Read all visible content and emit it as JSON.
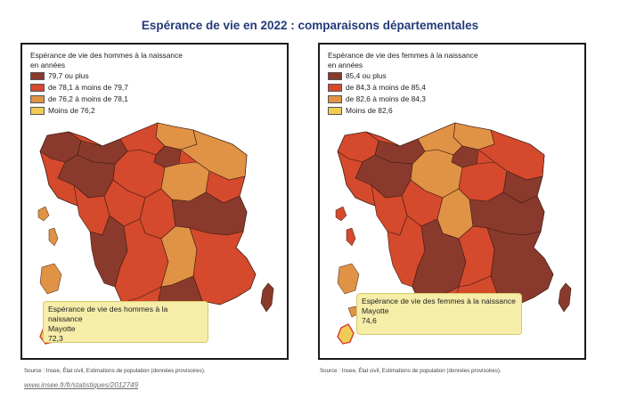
{
  "title": "Espérance de vie en 2022 : comparaisons départementales",
  "colors": {
    "c1": "#8a3a2c",
    "c2": "#d5492c",
    "c3": "#e09245",
    "c4": "#f1cc55",
    "border": "#3a1c14"
  },
  "maps": [
    {
      "legend_title_1": "Espérance de vie des hommes à la naissance",
      "legend_title_2": "en années",
      "legend": [
        "79,7 ou plus",
        "de 78,1 à moins de 79,7",
        "de 76,2 à moins de 78,1",
        "Moins de 76,2"
      ],
      "tooltip": {
        "line1": "Espérance de vie des hommes à la naissance",
        "line2": "Mayotte",
        "line3": "72,3"
      },
      "source": "Source : Insee, État civil, Estimations de population (données provisoires)."
    },
    {
      "legend_title_1": "Espérance de vie des femmes à la naissance",
      "legend_title_2": "en années",
      "legend": [
        "85,4 ou plus",
        "de 84,3 à moins de 85,4",
        "de 82,6 à moins de 84,3",
        "Moins de 82,6"
      ],
      "tooltip": {
        "line1": "Espérance de vie des femmes à la naissance",
        "line2": "Mayotte",
        "line3": "74,6"
      },
      "source": "Source : Insee, État civil, Estimations de population (données provisoires)."
    }
  ],
  "link": "www.insee.fr/fr/statistiques/2012749"
}
